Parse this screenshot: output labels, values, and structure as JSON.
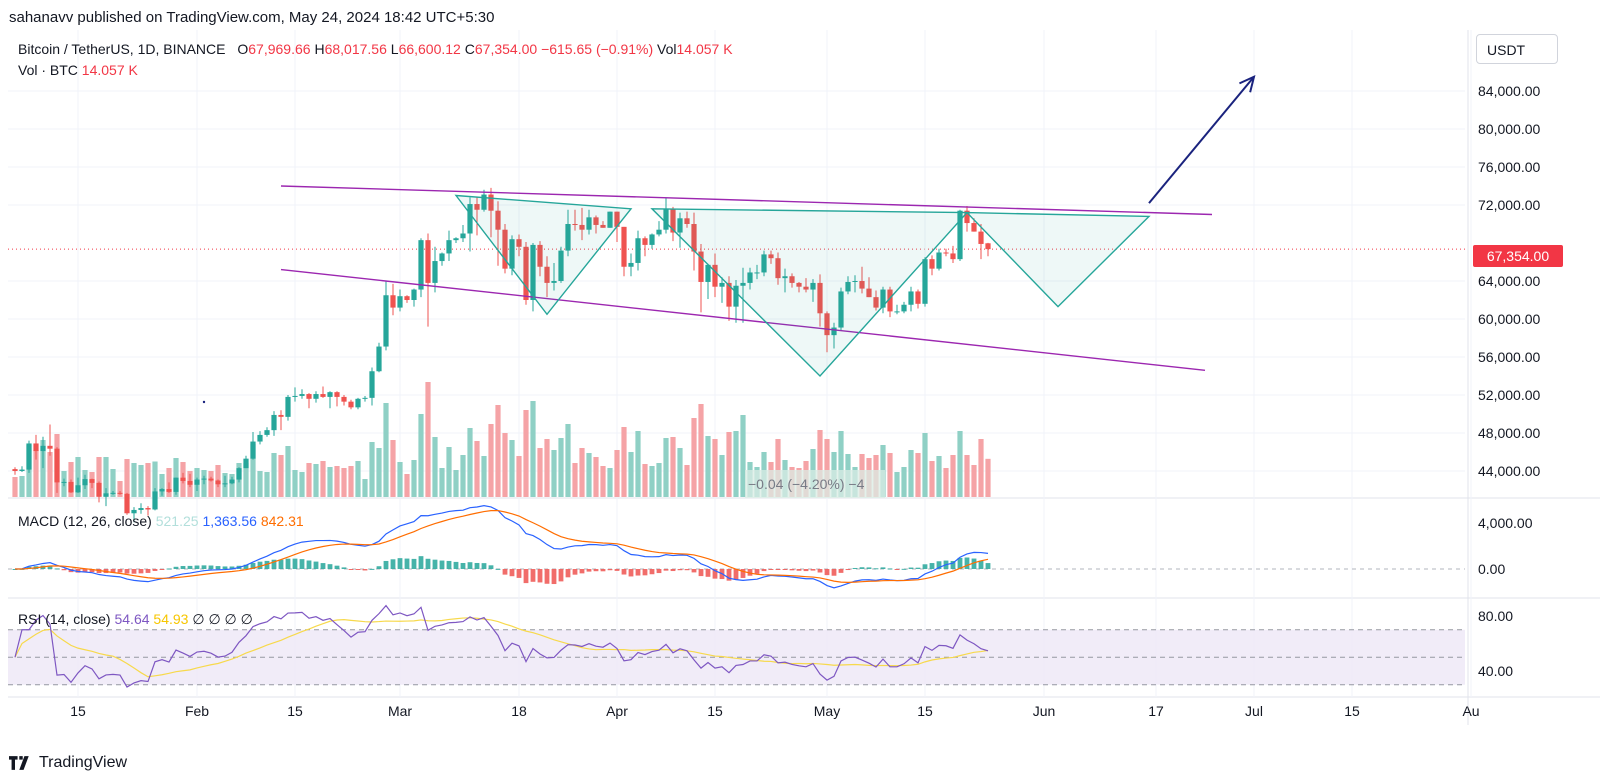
{
  "header": {
    "published": "sahanavv published on TradingView.com, May 24, 2024 18:42 UTC+5:30"
  },
  "legend": {
    "symbol": "Bitcoin / TetherUS, 1D, BINANCE",
    "o_label": "O",
    "o": "67,969.66",
    "h_label": "H",
    "h": "68,017.56",
    "l_label": "L",
    "l": "66,600.12",
    "c_label": "C",
    "c": "67,354.00",
    "change": "−615.65 (−0.91%)",
    "vol_label": "Vol",
    "vol": "14.057 K",
    "vol_row_label": "Vol · BTC",
    "vol_row_value": "14.057 K"
  },
  "unit_button": "USDT",
  "last_price": "67,354.00",
  "volume_overlay_text": "−0.04 (−4.20%) −4",
  "macd": {
    "label": "MACD (12, 26, close)",
    "hist": "521.25",
    "macd": "1,363.56",
    "signal": "842.31"
  },
  "rsi": {
    "label": "RSI (14, close)",
    "rsi": "54.64",
    "ma": "54.93",
    "extra": "∅ ∅ ∅ ∅"
  },
  "footer": {
    "brand": "TradingView"
  },
  "colors": {
    "up": "#26a69a",
    "down": "#ef5350",
    "trendline": "#9c27b0",
    "pattern": "#26a69a",
    "arrow": "#1a237e",
    "macd_line": "#2962ff",
    "signal_line": "#ff6d00",
    "rsi_line": "#7e57c2",
    "rsi_ma": "#f7d94c"
  },
  "chart_data": {
    "type": "candlestick",
    "price_axis": {
      "ticks": [
        "84,000.00",
        "80,000.00",
        "76,000.00",
        "72,000.00",
        "67,354.00",
        "64,000.00",
        "60,000.00",
        "56,000.00",
        "52,000.00",
        "48,000.00",
        "44,000.00"
      ],
      "ylim": [
        42000,
        87000
      ]
    },
    "macd_axis": {
      "ticks": [
        "4,000.00",
        "0.00"
      ]
    },
    "rsi_axis": {
      "ticks": [
        "80.00",
        "40.00"
      ],
      "bands": [
        30,
        50,
        70
      ]
    },
    "x_ticks": [
      {
        "label": "15",
        "date": "2024-01-15"
      },
      {
        "label": "Feb",
        "date": "2024-02-01"
      },
      {
        "label": "15",
        "date": "2024-02-15"
      },
      {
        "label": "Mar",
        "date": "2024-03-01"
      },
      {
        "label": "18",
        "date": "2024-03-18"
      },
      {
        "label": "Apr",
        "date": "2024-04-01"
      },
      {
        "label": "15",
        "date": "2024-04-15"
      },
      {
        "label": "May",
        "date": "2024-05-01"
      },
      {
        "label": "15",
        "date": "2024-05-15"
      },
      {
        "label": "Jun",
        "date": "2024-06-01"
      },
      {
        "label": "17",
        "date": "2024-06-17"
      },
      {
        "label": "Jul",
        "date": "2024-07-01"
      },
      {
        "label": "15",
        "date": "2024-07-15"
      },
      {
        "label": "Au",
        "date": "2024-08-01"
      }
    ],
    "candles": [
      [
        "2024-01-06",
        44200,
        44400,
        43600,
        44000
      ],
      [
        "2024-01-07",
        44000,
        44500,
        43900,
        44150
      ],
      [
        "2024-01-08",
        44150,
        47200,
        43800,
        46900
      ],
      [
        "2024-01-09",
        46900,
        47800,
        45200,
        46100
      ],
      [
        "2024-01-10",
        46100,
        47600,
        44300,
        46650
      ],
      [
        "2024-01-11",
        46650,
        48900,
        45600,
        46350
      ],
      [
        "2024-01-12",
        46350,
        46500,
        41700,
        42800
      ],
      [
        "2024-01-13",
        42800,
        43200,
        42400,
        42850
      ],
      [
        "2024-01-14",
        42850,
        43100,
        41700,
        41750
      ],
      [
        "2024-01-15",
        41750,
        43300,
        41700,
        42500
      ],
      [
        "2024-01-16",
        42500,
        43600,
        42100,
        43150
      ],
      [
        "2024-01-17",
        43150,
        43200,
        42200,
        42750
      ],
      [
        "2024-01-18",
        42750,
        42900,
        40700,
        41300
      ],
      [
        "2024-01-19",
        41300,
        42200,
        40300,
        41650
      ],
      [
        "2024-01-20",
        41650,
        41900,
        41500,
        41700
      ],
      [
        "2024-01-21",
        41700,
        41900,
        41500,
        41600
      ],
      [
        "2024-01-22",
        41600,
        41700,
        39400,
        39550
      ],
      [
        "2024-01-23",
        39550,
        40200,
        38600,
        39900
      ],
      [
        "2024-01-24",
        39900,
        40600,
        39500,
        40100
      ],
      [
        "2024-01-25",
        40100,
        40300,
        39300,
        39950
      ],
      [
        "2024-01-26",
        39950,
        42200,
        39850,
        41850
      ],
      [
        "2024-01-27",
        41850,
        42200,
        41400,
        42100
      ],
      [
        "2024-01-28",
        42100,
        42800,
        41700,
        41800
      ],
      [
        "2024-01-29",
        41800,
        43300,
        41500,
        43300
      ],
      [
        "2024-01-30",
        43300,
        43800,
        42700,
        42950
      ],
      [
        "2024-01-31",
        42950,
        43700,
        42300,
        42550
      ],
      [
        "2024-02-01",
        42550,
        43300,
        41900,
        43100
      ],
      [
        "2024-02-02",
        43100,
        43500,
        42600,
        43200
      ],
      [
        "2024-02-03",
        43200,
        43400,
        42900,
        43000
      ],
      [
        "2024-02-04",
        43000,
        43100,
        42300,
        42600
      ],
      [
        "2024-02-05",
        42600,
        43500,
        42300,
        42700
      ],
      [
        "2024-02-06",
        42700,
        43400,
        42600,
        43100
      ],
      [
        "2024-02-07",
        43100,
        44400,
        42800,
        44300
      ],
      [
        "2024-02-08",
        44300,
        45600,
        44300,
        45300
      ],
      [
        "2024-02-09",
        45300,
        48100,
        45200,
        47100
      ],
      [
        "2024-02-10",
        47100,
        48200,
        46800,
        47800
      ],
      [
        "2024-02-11",
        47800,
        48600,
        47600,
        48300
      ],
      [
        "2024-02-12",
        48300,
        50300,
        47700,
        49900
      ],
      [
        "2024-02-13",
        49900,
        50400,
        48300,
        49700
      ],
      [
        "2024-02-14",
        49700,
        52000,
        49300,
        51800
      ],
      [
        "2024-02-15",
        51800,
        52800,
        51300,
        51900
      ],
      [
        "2024-02-16",
        51900,
        52600,
        51600,
        52100
      ],
      [
        "2024-02-17",
        52100,
        52200,
        50600,
        51600
      ],
      [
        "2024-02-18",
        51600,
        52400,
        51200,
        52100
      ],
      [
        "2024-02-19",
        52100,
        52900,
        51700,
        51800
      ],
      [
        "2024-02-20",
        51800,
        52400,
        50600,
        52300
      ],
      [
        "2024-02-21",
        52300,
        52400,
        50800,
        51800
      ],
      [
        "2024-02-22",
        51800,
        52000,
        50900,
        51300
      ],
      [
        "2024-02-23",
        51300,
        51500,
        50500,
        50700
      ],
      [
        "2024-02-24",
        50700,
        51700,
        50500,
        51600
      ],
      [
        "2024-02-25",
        51600,
        51900,
        51300,
        51700
      ],
      [
        "2024-02-26",
        51700,
        54900,
        50900,
        54500
      ],
      [
        "2024-02-27",
        54500,
        57500,
        54400,
        57100
      ],
      [
        "2024-02-28",
        57100,
        64000,
        56700,
        62500
      ],
      [
        "2024-02-29",
        62500,
        63700,
        60400,
        61200
      ],
      [
        "2024-03-01",
        61200,
        63100,
        60800,
        62400
      ],
      [
        "2024-03-02",
        62400,
        62500,
        61700,
        62000
      ],
      [
        "2024-03-03",
        62000,
        63200,
        61300,
        63100
      ],
      [
        "2024-03-04",
        63100,
        68500,
        62300,
        68300
      ],
      [
        "2024-03-05",
        68300,
        69000,
        59200,
        63800
      ],
      [
        "2024-03-06",
        63800,
        67600,
        62800,
        66100
      ],
      [
        "2024-03-07",
        66100,
        67000,
        65600,
        66900
      ],
      [
        "2024-03-08",
        66900,
        69300,
        66100,
        68300
      ],
      [
        "2024-03-09",
        68300,
        68600,
        68000,
        68500
      ],
      [
        "2024-03-10",
        68500,
        69900,
        68100,
        69000
      ],
      [
        "2024-03-11",
        69000,
        72800,
        67100,
        72100
      ],
      [
        "2024-03-12",
        72100,
        72900,
        68800,
        71500
      ],
      [
        "2024-03-13",
        71500,
        73600,
        71300,
        73100
      ],
      [
        "2024-03-14",
        73100,
        73800,
        68600,
        71400
      ],
      [
        "2024-03-15",
        71400,
        72400,
        65600,
        69400
      ],
      [
        "2024-03-16",
        69400,
        70000,
        64800,
        65300
      ],
      [
        "2024-03-17",
        65300,
        68800,
        64600,
        68400
      ],
      [
        "2024-03-18",
        68400,
        68900,
        66600,
        67600
      ],
      [
        "2024-03-19",
        67600,
        68100,
        61500,
        62000
      ],
      [
        "2024-03-20",
        62000,
        68000,
        60800,
        67800
      ],
      [
        "2024-03-21",
        67800,
        68200,
        64500,
        65500
      ],
      [
        "2024-03-22",
        65500,
        66600,
        62300,
        63800
      ],
      [
        "2024-03-23",
        63800,
        65900,
        63000,
        64000
      ],
      [
        "2024-03-24",
        64000,
        67600,
        63800,
        67200
      ],
      [
        "2024-03-25",
        67200,
        71500,
        66600,
        70000
      ],
      [
        "2024-03-26",
        70000,
        71500,
        69300,
        69900
      ],
      [
        "2024-03-27",
        69900,
        71700,
        68300,
        69400
      ],
      [
        "2024-03-28",
        69400,
        71500,
        68900,
        70700
      ],
      [
        "2024-03-29",
        70700,
        70900,
        69000,
        69900
      ],
      [
        "2024-03-30",
        69900,
        70300,
        69600,
        69600
      ],
      [
        "2024-03-31",
        69600,
        71300,
        69600,
        71300
      ],
      [
        "2024-04-01",
        71300,
        71300,
        68100,
        69700
      ],
      [
        "2024-04-02",
        69700,
        69700,
        64500,
        65500
      ],
      [
        "2024-04-03",
        65500,
        66900,
        64500,
        65900
      ],
      [
        "2024-04-04",
        65900,
        69300,
        65100,
        68500
      ],
      [
        "2024-04-05",
        68500,
        68700,
        66600,
        67800
      ],
      [
        "2024-04-06",
        67800,
        69000,
        67400,
        68900
      ],
      [
        "2024-04-07",
        68900,
        70300,
        68700,
        69400
      ],
      [
        "2024-04-08",
        69400,
        72800,
        69000,
        71600
      ],
      [
        "2024-04-09",
        71600,
        71800,
        68200,
        69100
      ],
      [
        "2024-04-10",
        69100,
        71200,
        67500,
        70600
      ],
      [
        "2024-04-11",
        70600,
        71300,
        69600,
        70000
      ],
      [
        "2024-04-12",
        70000,
        71200,
        65100,
        67100
      ],
      [
        "2024-04-13",
        67100,
        67900,
        60700,
        63900
      ],
      [
        "2024-04-14",
        63900,
        65800,
        62100,
        65700
      ],
      [
        "2024-04-15",
        65700,
        66900,
        62300,
        63400
      ],
      [
        "2024-04-16",
        63400,
        64400,
        61700,
        63800
      ],
      [
        "2024-04-17",
        63800,
        64500,
        59800,
        61300
      ],
      [
        "2024-04-18",
        61300,
        64100,
        59600,
        63500
      ],
      [
        "2024-04-19",
        63500,
        65400,
        59600,
        63800
      ],
      [
        "2024-04-20",
        63800,
        65400,
        63100,
        64900
      ],
      [
        "2024-04-21",
        64900,
        65700,
        64200,
        64900
      ],
      [
        "2024-04-22",
        64900,
        67200,
        64500,
        66800
      ],
      [
        "2024-04-23",
        66800,
        67200,
        65800,
        66400
      ],
      [
        "2024-04-24",
        66400,
        67000,
        63600,
        64300
      ],
      [
        "2024-04-25",
        64300,
        65300,
        62800,
        64500
      ],
      [
        "2024-04-26",
        64500,
        64800,
        63300,
        63800
      ],
      [
        "2024-04-27",
        63800,
        63900,
        62800,
        63400
      ],
      [
        "2024-04-28",
        63400,
        64300,
        62800,
        63100
      ],
      [
        "2024-04-29",
        63100,
        64200,
        61800,
        63800
      ],
      [
        "2024-04-30",
        63800,
        64700,
        59200,
        60600
      ],
      [
        "2024-05-01",
        60600,
        60800,
        56500,
        58300
      ],
      [
        "2024-05-02",
        58300,
        59600,
        56900,
        59100
      ],
      [
        "2024-05-03",
        59100,
        63300,
        58800,
        62900
      ],
      [
        "2024-05-04",
        62900,
        64500,
        62600,
        63900
      ],
      [
        "2024-05-05",
        63900,
        64600,
        62800,
        64000
      ],
      [
        "2024-05-06",
        64000,
        65500,
        62700,
        63200
      ],
      [
        "2024-05-07",
        63200,
        64400,
        62300,
        62300
      ],
      [
        "2024-05-08",
        62300,
        63000,
        60900,
        61200
      ],
      [
        "2024-05-09",
        61200,
        63400,
        60600,
        63100
      ],
      [
        "2024-05-10",
        63100,
        63400,
        60200,
        60800
      ],
      [
        "2024-05-11",
        60800,
        61500,
        60500,
        60800
      ],
      [
        "2024-05-12",
        60800,
        61800,
        60600,
        61500
      ],
      [
        "2024-05-13",
        61500,
        63400,
        60800,
        62900
      ],
      [
        "2024-05-14",
        62900,
        63100,
        61100,
        61600
      ],
      [
        "2024-05-15",
        61600,
        66500,
        61300,
        66300
      ],
      [
        "2024-05-16",
        66300,
        66700,
        64600,
        65300
      ],
      [
        "2024-05-17",
        65300,
        67400,
        65100,
        67000
      ],
      [
        "2024-05-18",
        67000,
        67400,
        66600,
        66900
      ],
      [
        "2024-05-19",
        66900,
        67700,
        65900,
        66300
      ],
      [
        "2024-05-20",
        66300,
        71500,
        66100,
        71400
      ],
      [
        "2024-05-21",
        71400,
        71900,
        69200,
        70100
      ],
      [
        "2024-05-22",
        70100,
        70600,
        69200,
        69200
      ],
      [
        "2024-05-23",
        69200,
        70000,
        66300,
        67900
      ],
      [
        "2024-05-24",
        67970,
        68018,
        66600,
        67354
      ]
    ],
    "annotations": [
      {
        "type": "trendline",
        "name": "upper-resistance",
        "points": [
          [
            "2024-02-13",
            74000
          ],
          [
            "2024-06-25",
            71000
          ]
        ]
      },
      {
        "type": "trendline",
        "name": "lower-support",
        "points": [
          [
            "2024-02-13",
            65200
          ],
          [
            "2024-06-24",
            54600
          ]
        ]
      },
      {
        "type": "triangle",
        "name": "left-shoulder",
        "points": [
          [
            "2024-03-09",
            73000
          ],
          [
            "2024-04-03",
            71600
          ],
          [
            "2024-03-22",
            60500
          ]
        ]
      },
      {
        "type": "triangle",
        "name": "head",
        "points": [
          [
            "2024-04-06",
            71600
          ],
          [
            "2024-05-21",
            71200
          ],
          [
            "2024-04-30",
            54000
          ]
        ]
      },
      {
        "type": "triangle",
        "name": "right-shoulder",
        "points": [
          [
            "2024-05-21",
            71200
          ],
          [
            "2024-06-16",
            70800
          ],
          [
            "2024-06-03",
            61300
          ]
        ]
      },
      {
        "type": "arrow",
        "name": "breakout-projection",
        "points": [
          [
            "2024-06-16",
            72200
          ],
          [
            "2024-07-01",
            85500
          ]
        ]
      }
    ]
  }
}
